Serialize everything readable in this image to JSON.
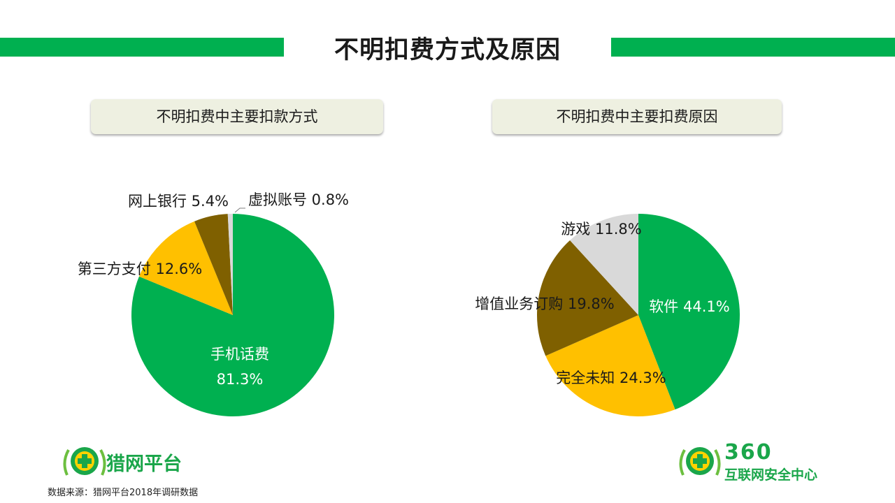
{
  "page": {
    "title": "不明扣费方式及原因",
    "accent_color": "#00b050",
    "footnote": "数据来源：猎网平台2018年调研数据"
  },
  "chart_data": [
    {
      "type": "pie",
      "title": "不明扣费中主要扣款方式",
      "slices": [
        {
          "label": "手机话费",
          "value": 81.3,
          "value_text": "81.3%",
          "color": "#00b050"
        },
        {
          "label": "第三方支付",
          "value": 12.6,
          "value_text": "12.6%",
          "color": "#ffc000"
        },
        {
          "label": "网上银行",
          "value": 5.4,
          "value_text": "5.4%",
          "color": "#7f6000"
        },
        {
          "label": "虚拟账号",
          "value": 0.8,
          "value_text": "0.8%",
          "color": "#d9d9d9"
        }
      ]
    },
    {
      "type": "pie",
      "title": "不明扣费中主要扣费原因",
      "slices": [
        {
          "label": "软件",
          "value": 44.1,
          "value_text": "44.1%",
          "color": "#00b050"
        },
        {
          "label": "完全未知",
          "value": 24.3,
          "value_text": "24.3%",
          "color": "#ffc000"
        },
        {
          "label": "增值业务订购",
          "value": 19.8,
          "value_text": "19.8%",
          "color": "#7f6000"
        },
        {
          "label": "游戏",
          "value": 11.8,
          "value_text": "11.8%",
          "color": "#d9d9d9"
        }
      ]
    }
  ],
  "logos": {
    "left": {
      "name": "猎网平台",
      "icon": "plus-emblem-icon"
    },
    "right": {
      "name_top": "360",
      "name_bottom": "互联网安全中心",
      "icon": "plus-emblem-icon"
    }
  }
}
